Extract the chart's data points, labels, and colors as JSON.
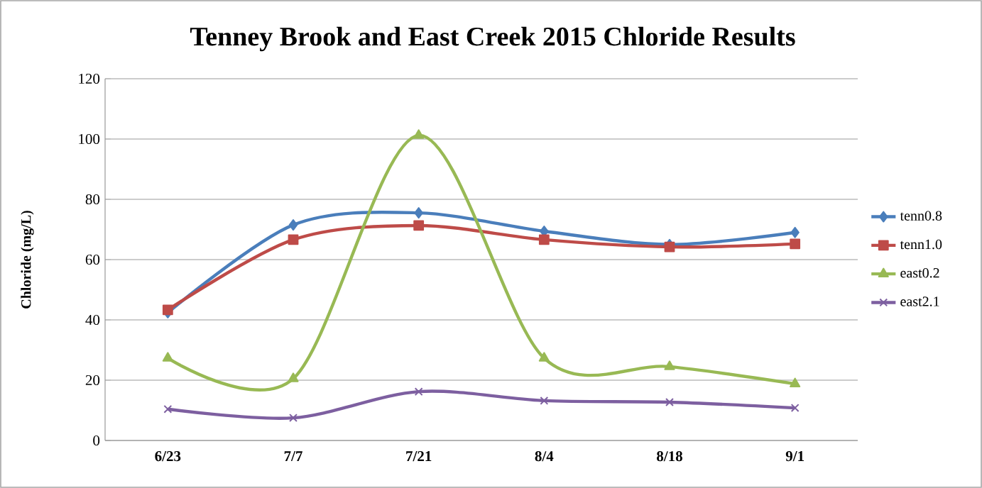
{
  "chart_data": {
    "type": "line",
    "title": "Tenney Brook and East Creek 2015 Chloride Results",
    "ylabel": "Chloride (mg/L)",
    "categories": [
      "6/23",
      "7/7",
      "7/21",
      "8/4",
      "8/18",
      "9/1"
    ],
    "series": [
      {
        "name": "tenn0.8",
        "color": "#4a7ebb",
        "marker": "diamond",
        "values": [
          42.4,
          71.5,
          75.5,
          69.4,
          65.0,
          69.0
        ]
      },
      {
        "name": "tenn1.0",
        "color": "#be4b48",
        "marker": "square",
        "values": [
          43.3,
          66.6,
          71.3,
          66.6,
          64.2,
          65.2
        ]
      },
      {
        "name": "east0.2",
        "color": "#98b954",
        "marker": "triangle",
        "values": [
          27.3,
          20.5,
          101.2,
          27.3,
          24.5,
          18.8
        ]
      },
      {
        "name": "east2.1",
        "color": "#7d5fa0",
        "marker": "cross",
        "values": [
          10.4,
          7.5,
          16.2,
          13.2,
          12.7,
          10.8
        ]
      }
    ],
    "ylim": [
      0,
      120
    ],
    "yticks": [
      0,
      20,
      40,
      60,
      80,
      100,
      120
    ],
    "grid": "y",
    "legend": "right",
    "line_style": "solid"
  }
}
